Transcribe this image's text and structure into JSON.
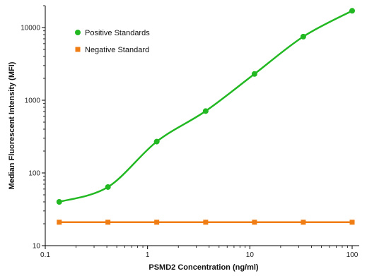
{
  "chart_data": {
    "type": "scatter",
    "xlabel": "PSMD2 Concentration (ng/ml)",
    "ylabel": "Median Fluorescent Intensity (MFI)",
    "x_scale": "log",
    "y_scale": "log",
    "xlim": [
      0.1,
      100
    ],
    "ylim": [
      10,
      20000
    ],
    "x_ticks": [
      {
        "value": 0.1,
        "label": "0.1"
      },
      {
        "value": 1,
        "label": "1"
      },
      {
        "value": 10,
        "label": "10"
      },
      {
        "value": 100,
        "label": "100"
      }
    ],
    "y_ticks": [
      {
        "value": 10,
        "label": "10"
      },
      {
        "value": 100,
        "label": "100"
      },
      {
        "value": 1000,
        "label": "1000"
      },
      {
        "value": 10000,
        "label": "10000"
      }
    ],
    "legend_position": "top-left",
    "grid": false,
    "series": [
      {
        "name": "Positive Standards",
        "color": "#22b822",
        "marker": "circle",
        "fit_curve": true,
        "x": [
          0.137,
          0.41,
          1.23,
          3.7,
          11.1,
          33.3,
          100
        ],
        "y": [
          40,
          64,
          270,
          710,
          2300,
          7500,
          17000
        ]
      },
      {
        "name": "Negative Standard",
        "color": "#f07d14",
        "marker": "square",
        "fit_curve": false,
        "x": [
          0.137,
          0.41,
          1.23,
          3.7,
          11.1,
          33.3,
          100
        ],
        "y": [
          21,
          21,
          21,
          21,
          21,
          21,
          21
        ]
      }
    ]
  }
}
